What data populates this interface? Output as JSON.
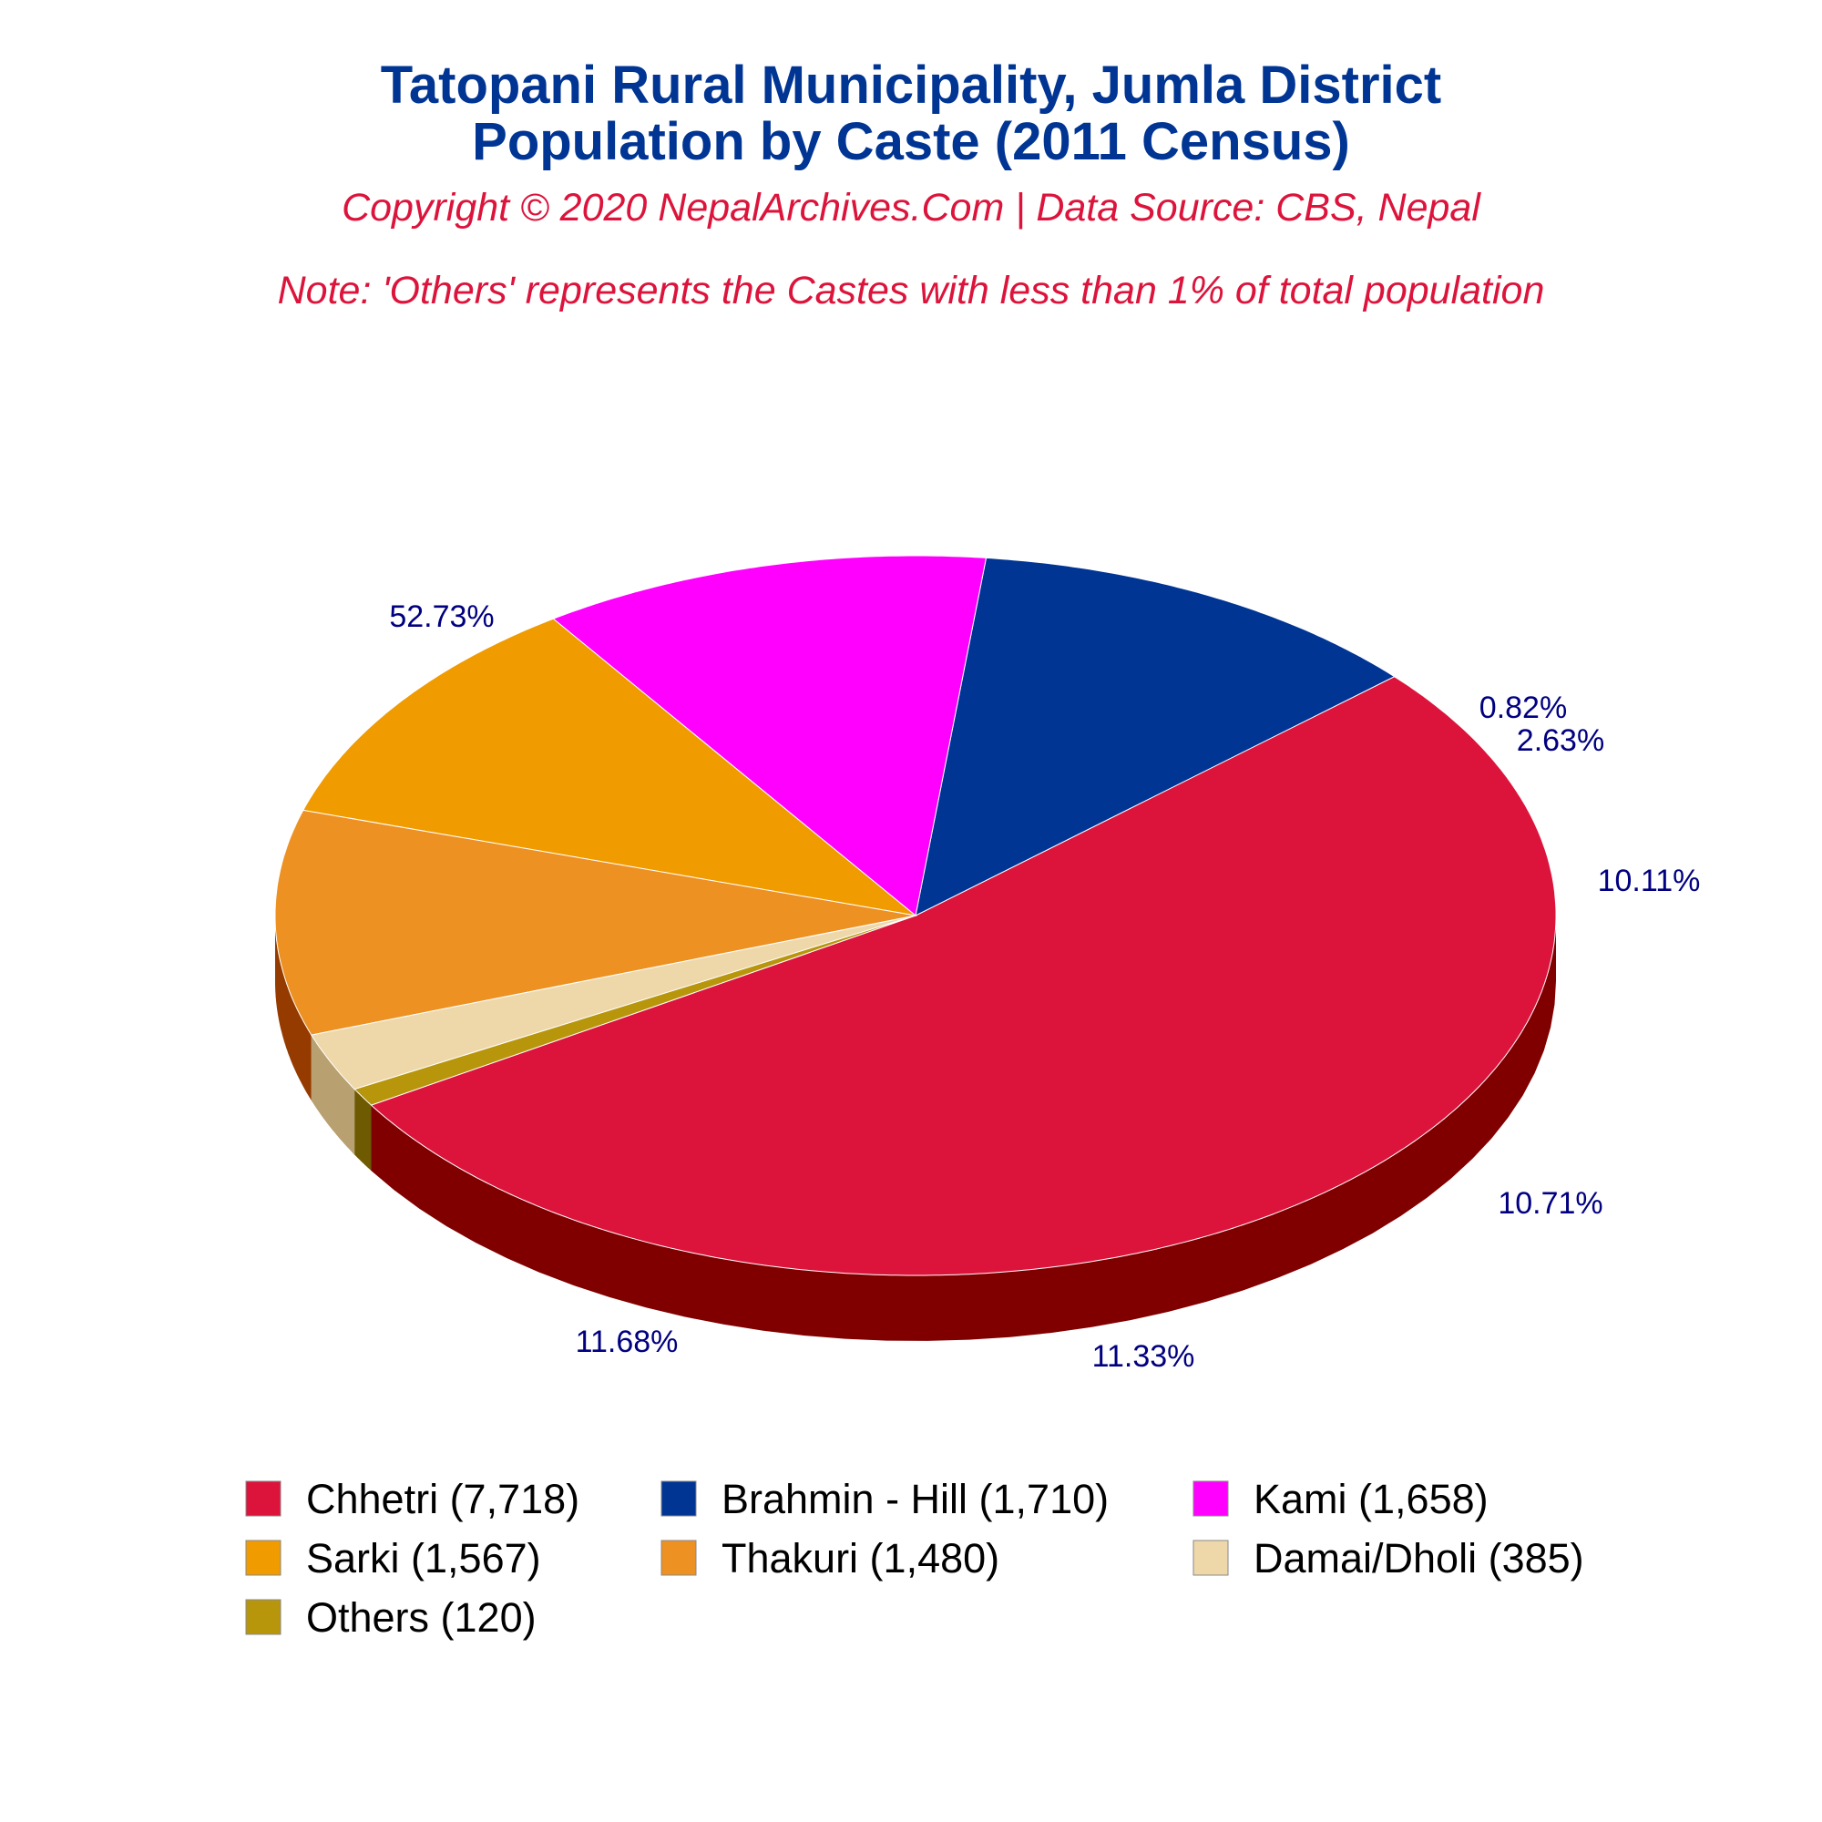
{
  "title_line1": "Tatopani Rural Municipality, Jumla District",
  "title_line2": "Population by Caste (2011 Census)",
  "subtitle": "Copyright © 2020 NepalArchives.Com | Data Source: CBS, Nepal",
  "note": "Note: 'Others' represents the Castes with less than 1% of total population",
  "chart_data": {
    "type": "pie",
    "style": "3d",
    "slices": [
      {
        "label": "Chhetri (7,718)",
        "caste": "Chhetri",
        "value": 7718,
        "percent": "52.73%",
        "color": "#DC143C",
        "side_color": "#800000"
      },
      {
        "label": "Brahmin - Hill (1,710)",
        "caste": "Brahmin - Hill",
        "value": 1710,
        "percent": "11.68%",
        "color": "#003594",
        "side_color": "#000033"
      },
      {
        "label": "Kami (1,658)",
        "caste": "Kami",
        "value": 1658,
        "percent": "11.33%",
        "color": "#FF00FF",
        "side_color": "#A000A0"
      },
      {
        "label": "Sarki (1,567)",
        "caste": "Sarki",
        "value": 1567,
        "percent": "10.71%",
        "color": "#F09B00",
        "side_color": "#953B00"
      },
      {
        "label": "Thakuri (1,480)",
        "caste": "Thakuri",
        "value": 1480,
        "percent": "10.11%",
        "color": "#EC9122",
        "side_color": "#953B00"
      },
      {
        "label": "Damai/Dholi (385)",
        "caste": "Damai/Dholi",
        "value": 385,
        "percent": "2.63%",
        "color": "#EED8AA",
        "side_color": "#B8A070"
      },
      {
        "label": "Others (120)",
        "caste": "Others",
        "value": 120,
        "percent": "0.82%",
        "color": "#B8960C",
        "side_color": "#6E5A00"
      }
    ],
    "legend_position": "bottom"
  }
}
